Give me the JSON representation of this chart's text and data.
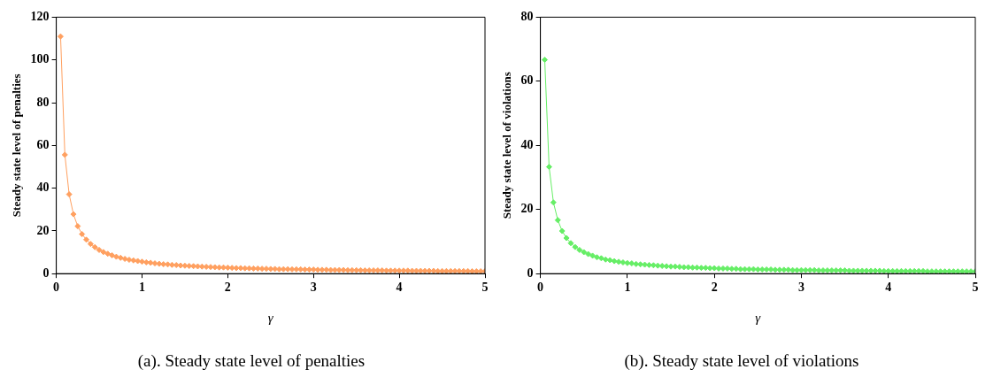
{
  "chart_data": [
    {
      "type": "line",
      "title": "(a). Steady state level of penalties",
      "xlabel": "γ",
      "ylabel": "Steady state level of penalties",
      "marker": "diamond",
      "xlim": [
        0,
        5
      ],
      "xticks": [
        0,
        1,
        2,
        3,
        4,
        5
      ],
      "ylim": [
        0,
        120
      ],
      "yticks": [
        0,
        20,
        40,
        60,
        80,
        100,
        120
      ],
      "x": [
        0.05,
        0.1,
        0.15,
        0.2,
        0.25,
        0.3,
        0.35,
        0.4,
        0.45,
        0.5,
        0.55,
        0.6,
        0.65,
        0.7,
        0.75,
        0.8,
        0.85,
        0.9,
        0.95,
        1.0,
        1.05,
        1.1,
        1.15,
        1.2,
        1.25,
        1.3,
        1.35,
        1.4,
        1.45,
        1.5,
        1.55,
        1.6,
        1.65,
        1.7,
        1.75,
        1.8,
        1.85,
        1.9,
        1.95,
        2.0,
        2.05,
        2.1,
        2.15,
        2.2,
        2.25,
        2.3,
        2.35,
        2.4,
        2.45,
        2.5,
        2.55,
        2.6,
        2.65,
        2.7,
        2.75,
        2.8,
        2.85,
        2.9,
        2.95,
        3.0,
        3.05,
        3.1,
        3.15,
        3.2,
        3.25,
        3.3,
        3.35,
        3.4,
        3.45,
        3.5,
        3.55,
        3.6,
        3.65,
        3.7,
        3.75,
        3.8,
        3.85,
        3.9,
        3.95,
        4.0,
        4.05,
        4.1,
        4.15,
        4.2,
        4.25,
        4.3,
        4.35,
        4.4,
        4.45,
        4.5,
        4.55,
        4.6,
        4.65,
        4.7,
        4.75,
        4.8,
        4.85,
        4.9,
        4.95,
        5.0
      ],
      "series": [
        {
          "color": "#ffa060",
          "values": [
            111,
            55.6,
            37.1,
            27.8,
            22.2,
            18.5,
            15.9,
            13.9,
            12.4,
            11.1,
            10.1,
            9.3,
            8.6,
            7.9,
            7.4,
            6.9,
            6.5,
            6.2,
            5.9,
            5.6,
            5.3,
            5.1,
            4.8,
            4.6,
            4.4,
            4.3,
            4.1,
            4.0,
            3.8,
            3.7,
            3.6,
            3.5,
            3.4,
            3.3,
            3.2,
            3.1,
            3.0,
            2.9,
            2.9,
            2.8,
            2.7,
            2.6,
            2.6,
            2.5,
            2.5,
            2.4,
            2.4,
            2.3,
            2.3,
            2.2,
            2.2,
            2.1,
            2.1,
            2.1,
            2.0,
            2.0,
            2.0,
            1.9,
            1.9,
            1.9,
            1.8,
            1.8,
            1.8,
            1.7,
            1.7,
            1.7,
            1.7,
            1.6,
            1.6,
            1.6,
            1.6,
            1.5,
            1.5,
            1.5,
            1.5,
            1.5,
            1.4,
            1.4,
            1.4,
            1.4,
            1.4,
            1.4,
            1.3,
            1.3,
            1.3,
            1.3,
            1.3,
            1.3,
            1.2,
            1.2,
            1.2,
            1.2,
            1.2,
            1.2,
            1.2,
            1.2,
            1.1,
            1.1,
            1.1,
            1.1
          ]
        }
      ]
    },
    {
      "type": "line",
      "title": "(b). Steady state level of violations",
      "xlabel": "γ",
      "ylabel": "Steady state level of violations",
      "marker": "diamond",
      "xlim": [
        0,
        5
      ],
      "xticks": [
        0,
        1,
        2,
        3,
        4,
        5
      ],
      "ylim": [
        0,
        80
      ],
      "yticks": [
        0,
        20,
        40,
        60,
        80
      ],
      "x": [
        0.05,
        0.1,
        0.15,
        0.2,
        0.25,
        0.3,
        0.35,
        0.4,
        0.45,
        0.5,
        0.55,
        0.6,
        0.65,
        0.7,
        0.75,
        0.8,
        0.85,
        0.9,
        0.95,
        1.0,
        1.05,
        1.1,
        1.15,
        1.2,
        1.25,
        1.3,
        1.35,
        1.4,
        1.45,
        1.5,
        1.55,
        1.6,
        1.65,
        1.7,
        1.75,
        1.8,
        1.85,
        1.9,
        1.95,
        2.0,
        2.05,
        2.1,
        2.15,
        2.2,
        2.25,
        2.3,
        2.35,
        2.4,
        2.45,
        2.5,
        2.55,
        2.6,
        2.65,
        2.7,
        2.75,
        2.8,
        2.85,
        2.9,
        2.95,
        3.0,
        3.05,
        3.1,
        3.15,
        3.2,
        3.25,
        3.3,
        3.35,
        3.4,
        3.45,
        3.5,
        3.55,
        3.6,
        3.65,
        3.7,
        3.75,
        3.8,
        3.85,
        3.9,
        3.95,
        4.0,
        4.05,
        4.1,
        4.15,
        4.2,
        4.25,
        4.3,
        4.35,
        4.4,
        4.45,
        4.5,
        4.55,
        4.6,
        4.65,
        4.7,
        4.75,
        4.8,
        4.85,
        4.9,
        4.95,
        5.0
      ],
      "series": [
        {
          "color": "#66ee66",
          "values": [
            66.7,
            33.3,
            22.2,
            16.7,
            13.3,
            11.1,
            9.5,
            8.3,
            7.4,
            6.7,
            6.1,
            5.6,
            5.1,
            4.8,
            4.4,
            4.2,
            3.9,
            3.7,
            3.5,
            3.3,
            3.2,
            3.0,
            2.9,
            2.8,
            2.7,
            2.6,
            2.5,
            2.4,
            2.3,
            2.2,
            2.2,
            2.1,
            2.0,
            2.0,
            1.9,
            1.9,
            1.8,
            1.8,
            1.7,
            1.7,
            1.6,
            1.6,
            1.6,
            1.5,
            1.5,
            1.4,
            1.4,
            1.4,
            1.4,
            1.3,
            1.3,
            1.3,
            1.3,
            1.2,
            1.2,
            1.2,
            1.2,
            1.1,
            1.1,
            1.1,
            1.1,
            1.1,
            1.1,
            1.0,
            1.0,
            1.0,
            1.0,
            1.0,
            1.0,
            1.0,
            0.9,
            0.9,
            0.9,
            0.9,
            0.9,
            0.9,
            0.9,
            0.9,
            0.8,
            0.8,
            0.8,
            0.8,
            0.8,
            0.8,
            0.8,
            0.8,
            0.8,
            0.8,
            0.7,
            0.7,
            0.7,
            0.7,
            0.7,
            0.7,
            0.7,
            0.7,
            0.7,
            0.7,
            0.7,
            0.7
          ]
        }
      ]
    }
  ]
}
